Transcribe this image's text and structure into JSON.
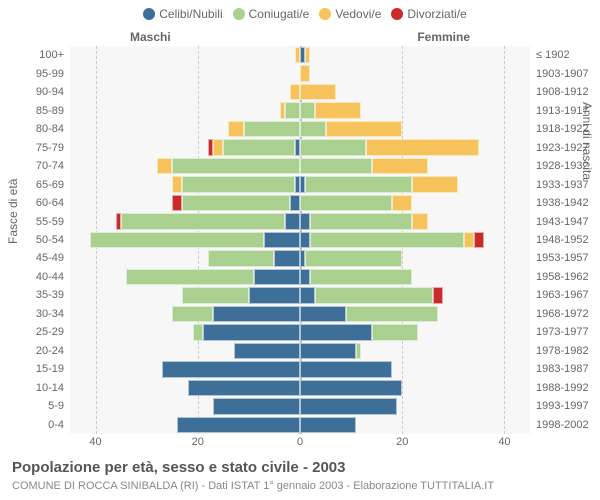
{
  "title": "Popolazione per età, sesso e stato civile - 2003",
  "subtitle": "COMUNE DI ROCCA SINIBALDA (RI) - Dati ISTAT 1° gennaio 2003 - Elaborazione TUTTITALIA.IT",
  "headers": {
    "male": "Maschi",
    "female": "Femmine"
  },
  "legend": [
    {
      "label": "Celibi/Nubili",
      "color": "#3d6f99"
    },
    {
      "label": "Coniugati/e",
      "color": "#a9d08e"
    },
    {
      "label": "Vedovi/e",
      "color": "#f6c25b"
    },
    {
      "label": "Divorziati/e",
      "color": "#c92a2a"
    }
  ],
  "axes": {
    "y_left_title": "Fasce di età",
    "y_right_title": "Anni di nascita",
    "x_ticks": [
      40,
      20,
      0,
      20,
      40
    ],
    "x_max": 45
  },
  "colors": {
    "grid": "#cccccc",
    "plot_bg": "#f7f7f7",
    "text": "#666666",
    "celibi": "#3d6f99",
    "coniugati": "#a9d08e",
    "vedovi": "#f6c25b",
    "divorziati": "#c92a2a"
  },
  "rows": [
    {
      "age": "100+",
      "birth": "≤ 1902",
      "m": [
        0,
        0,
        1,
        0
      ],
      "f": [
        1,
        0,
        1,
        0
      ]
    },
    {
      "age": "95-99",
      "birth": "1903-1907",
      "m": [
        0,
        0,
        0,
        0
      ],
      "f": [
        0,
        0,
        2,
        0
      ]
    },
    {
      "age": "90-94",
      "birth": "1908-1912",
      "m": [
        0,
        0,
        2,
        0
      ],
      "f": [
        0,
        0,
        7,
        0
      ]
    },
    {
      "age": "85-89",
      "birth": "1913-1917",
      "m": [
        0,
        3,
        1,
        0
      ],
      "f": [
        0,
        3,
        9,
        0
      ]
    },
    {
      "age": "80-84",
      "birth": "1918-1922",
      "m": [
        0,
        11,
        3,
        0
      ],
      "f": [
        0,
        5,
        15,
        0
      ]
    },
    {
      "age": "75-79",
      "birth": "1923-1927",
      "m": [
        1,
        14,
        2,
        1
      ],
      "f": [
        0,
        13,
        22,
        0
      ]
    },
    {
      "age": "70-74",
      "birth": "1928-1932",
      "m": [
        0,
        25,
        3,
        0
      ],
      "f": [
        0,
        14,
        11,
        0
      ]
    },
    {
      "age": "65-69",
      "birth": "1933-1937",
      "m": [
        1,
        22,
        2,
        0
      ],
      "f": [
        1,
        21,
        9,
        0
      ]
    },
    {
      "age": "60-64",
      "birth": "1938-1942",
      "m": [
        2,
        21,
        0,
        2
      ],
      "f": [
        0,
        18,
        4,
        0
      ]
    },
    {
      "age": "55-59",
      "birth": "1943-1947",
      "m": [
        3,
        32,
        0,
        1
      ],
      "f": [
        2,
        20,
        3,
        0
      ]
    },
    {
      "age": "50-54",
      "birth": "1948-1952",
      "m": [
        7,
        34,
        0,
        0
      ],
      "f": [
        2,
        30,
        2,
        2
      ]
    },
    {
      "age": "45-49",
      "birth": "1953-1957",
      "m": [
        5,
        13,
        0,
        0
      ],
      "f": [
        1,
        19,
        0,
        0
      ]
    },
    {
      "age": "40-44",
      "birth": "1958-1962",
      "m": [
        9,
        25,
        0,
        0
      ],
      "f": [
        2,
        20,
        0,
        0
      ]
    },
    {
      "age": "35-39",
      "birth": "1963-1967",
      "m": [
        10,
        13,
        0,
        0
      ],
      "f": [
        3,
        23,
        0,
        2
      ]
    },
    {
      "age": "30-34",
      "birth": "1968-1972",
      "m": [
        17,
        8,
        0,
        0
      ],
      "f": [
        9,
        18,
        0,
        0
      ]
    },
    {
      "age": "25-29",
      "birth": "1973-1977",
      "m": [
        19,
        2,
        0,
        0
      ],
      "f": [
        14,
        9,
        0,
        0
      ]
    },
    {
      "age": "20-24",
      "birth": "1978-1982",
      "m": [
        13,
        0,
        0,
        0
      ],
      "f": [
        11,
        1,
        0,
        0
      ]
    },
    {
      "age": "15-19",
      "birth": "1983-1987",
      "m": [
        27,
        0,
        0,
        0
      ],
      "f": [
        18,
        0,
        0,
        0
      ]
    },
    {
      "age": "10-14",
      "birth": "1988-1992",
      "m": [
        22,
        0,
        0,
        0
      ],
      "f": [
        20,
        0,
        0,
        0
      ]
    },
    {
      "age": "5-9",
      "birth": "1993-1997",
      "m": [
        17,
        0,
        0,
        0
      ],
      "f": [
        19,
        0,
        0,
        0
      ]
    },
    {
      "age": "0-4",
      "birth": "1998-2002",
      "m": [
        24,
        0,
        0,
        0
      ],
      "f": [
        11,
        0,
        0,
        0
      ]
    }
  ]
}
